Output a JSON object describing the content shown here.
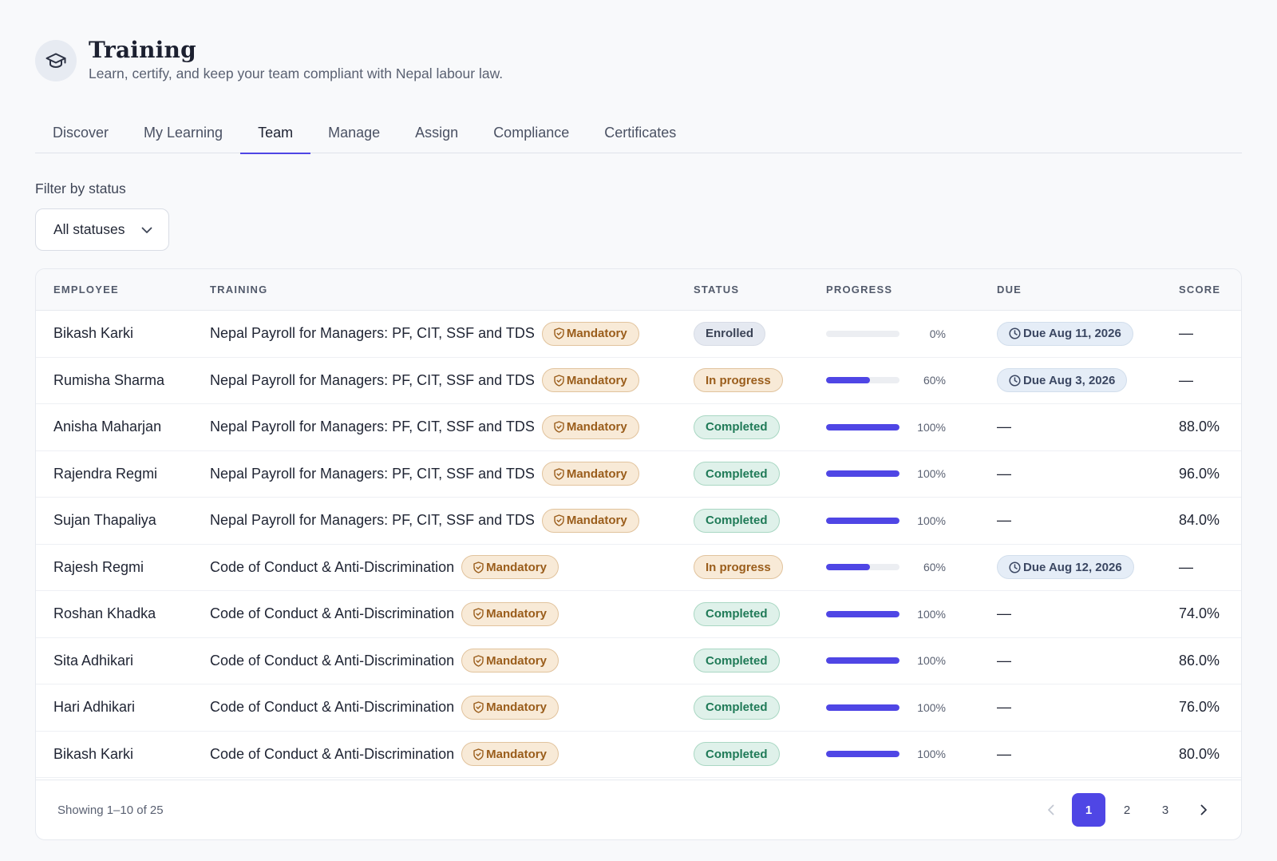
{
  "header": {
    "title": "Training",
    "subtitle": "Learn, certify, and keep your team compliant with Nepal labour law.",
    "icon": "graduation-cap-icon"
  },
  "tabs": [
    {
      "label": "Discover",
      "active": false
    },
    {
      "label": "My Learning",
      "active": false
    },
    {
      "label": "Team",
      "active": true
    },
    {
      "label": "Manage",
      "active": false
    },
    {
      "label": "Assign",
      "active": false
    },
    {
      "label": "Compliance",
      "active": false
    },
    {
      "label": "Certificates",
      "active": false
    }
  ],
  "filter": {
    "label": "Filter by status",
    "value": "All statuses"
  },
  "table": {
    "columns": {
      "employee": "EMPLOYEE",
      "training": "TRAINING",
      "status": "STATUS",
      "progress": "PROGRESS",
      "due": "DUE",
      "score": "SCORE"
    },
    "mandatory_label": "Mandatory",
    "rows": [
      {
        "employee": "Bikash Karki",
        "training": "Nepal Payroll for Managers: PF, CIT, SSF and TDS",
        "status": "Enrolled",
        "status_kind": "enrolled",
        "progress": 0,
        "progress_label": "0%",
        "due": "Due Aug 11, 2026",
        "score": "—"
      },
      {
        "employee": "Rumisha Sharma",
        "training": "Nepal Payroll for Managers: PF, CIT, SSF and TDS",
        "status": "In progress",
        "status_kind": "inprogress",
        "progress": 60,
        "progress_label": "60%",
        "due": "Due Aug 3, 2026",
        "score": "—"
      },
      {
        "employee": "Anisha Maharjan",
        "training": "Nepal Payroll for Managers: PF, CIT, SSF and TDS",
        "status": "Completed",
        "status_kind": "completed",
        "progress": 100,
        "progress_label": "100%",
        "due": "—",
        "score": "88.0%"
      },
      {
        "employee": "Rajendra Regmi",
        "training": "Nepal Payroll for Managers: PF, CIT, SSF and TDS",
        "status": "Completed",
        "status_kind": "completed",
        "progress": 100,
        "progress_label": "100%",
        "due": "—",
        "score": "96.0%"
      },
      {
        "employee": "Sujan Thapaliya",
        "training": "Nepal Payroll for Managers: PF, CIT, SSF and TDS",
        "status": "Completed",
        "status_kind": "completed",
        "progress": 100,
        "progress_label": "100%",
        "due": "—",
        "score": "84.0%"
      },
      {
        "employee": "Rajesh Regmi",
        "training": "Code of Conduct & Anti-Discrimination",
        "status": "In progress",
        "status_kind": "inprogress",
        "progress": 60,
        "progress_label": "60%",
        "due": "Due Aug 12, 2026",
        "score": "—"
      },
      {
        "employee": "Roshan Khadka",
        "training": "Code of Conduct & Anti-Discrimination",
        "status": "Completed",
        "status_kind": "completed",
        "progress": 100,
        "progress_label": "100%",
        "due": "—",
        "score": "74.0%"
      },
      {
        "employee": "Sita Adhikari",
        "training": "Code of Conduct & Anti-Discrimination",
        "status": "Completed",
        "status_kind": "completed",
        "progress": 100,
        "progress_label": "100%",
        "due": "—",
        "score": "86.0%"
      },
      {
        "employee": "Hari Adhikari",
        "training": "Code of Conduct & Anti-Discrimination",
        "status": "Completed",
        "status_kind": "completed",
        "progress": 100,
        "progress_label": "100%",
        "due": "—",
        "score": "76.0%"
      },
      {
        "employee": "Bikash Karki",
        "training": "Code of Conduct & Anti-Discrimination",
        "status": "Completed",
        "status_kind": "completed",
        "progress": 100,
        "progress_label": "100%",
        "due": "—",
        "score": "80.0%"
      }
    ]
  },
  "pagination": {
    "showing": "Showing 1–10 of 25",
    "pages": [
      "1",
      "2",
      "3"
    ],
    "current": "1"
  },
  "colors": {
    "accent": "#4f46e5",
    "mandatory_bg": "#f8ead7",
    "completed_bg": "#dff1ea"
  }
}
